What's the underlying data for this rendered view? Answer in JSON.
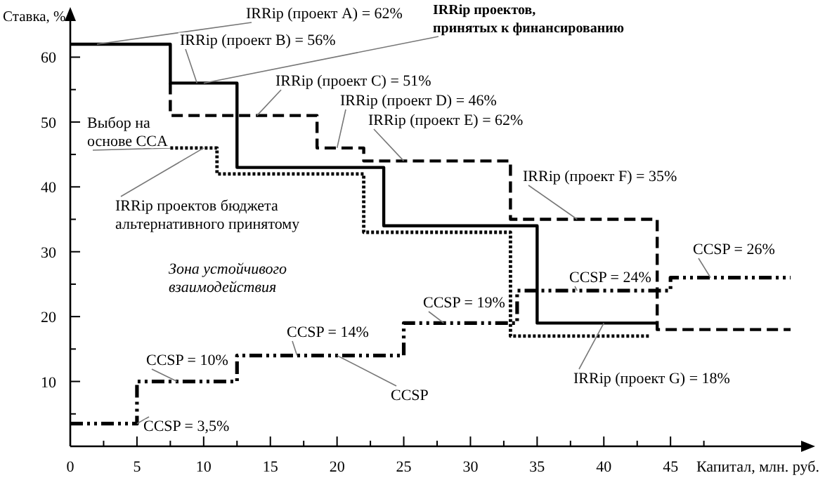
{
  "chart_data": {
    "type": "line",
    "xlabel": "Капитал, млн. руб.",
    "ylabel": "Ставка, %",
    "xlim": [
      0,
      55
    ],
    "ylim": [
      0,
      66
    ],
    "xticks": [
      0,
      {
        "value": 2.5,
        "label": null
      },
      5,
      {
        "value": 7.5,
        "label": null
      },
      10,
      {
        "value": 12.5,
        "label": null
      },
      15,
      {
        "value": 17.5,
        "label": null
      },
      20,
      {
        "value": 22.5,
        "label": null
      },
      25,
      {
        "value": 27.5,
        "label": null
      },
      30,
      {
        "value": 32.5,
        "label": null
      },
      35,
      {
        "value": 37.5,
        "label": null
      },
      40,
      {
        "value": 42.5,
        "label": null
      },
      45,
      {
        "value": 47.5,
        "label": null
      }
    ],
    "yticks": [
      {
        "value": 5,
        "label": null
      },
      10,
      {
        "value": 15,
        "label": null
      },
      20,
      {
        "value": 25,
        "label": null
      },
      30,
      {
        "value": 35,
        "label": null
      },
      40,
      {
        "value": 45,
        "label": null
      },
      50,
      {
        "value": 55,
        "label": null
      },
      60
    ],
    "marker": "none",
    "series": [
      {
        "color": "#000000",
        "line_style": "solid",
        "x": [
          0,
          7.5,
          7.5,
          12.5,
          12.5,
          23.5,
          23.5,
          35,
          35,
          44
        ],
        "values": [
          62,
          62,
          56,
          56,
          43,
          43,
          34,
          34,
          19,
          19
        ]
      },
      {
        "color": "#000000",
        "line_style": "dashed",
        "x": [
          7.5,
          7.5,
          18.5,
          18.5,
          22,
          22,
          33,
          33,
          44,
          44,
          54
        ],
        "values": [
          56,
          51,
          51,
          46,
          46,
          44,
          44,
          35,
          35,
          18,
          18
        ]
      },
      {
        "color": "#000000",
        "line_style": "dotted",
        "x": [
          7.5,
          11,
          11,
          22,
          22,
          33,
          33,
          43.5
        ],
        "values": [
          46,
          46,
          42,
          42,
          33,
          33,
          17,
          17
        ]
      },
      {
        "color": "#000000",
        "line_style": "dashdot",
        "x": [
          0,
          5,
          5,
          12.5,
          12.5,
          25,
          25,
          33.5,
          33.5,
          45,
          45,
          54
        ],
        "values": [
          3.5,
          3.5,
          10,
          10,
          14,
          14,
          19,
          19,
          24,
          24,
          26,
          26
        ]
      }
    ],
    "annotations": [
      {
        "text": "IRRip (проект A) = 62%",
        "x": 2,
        "y": 62
      },
      {
        "text": "IRRip (проект B) = 56%",
        "x": 9.5,
        "y": 56
      },
      {
        "text": "IRRip проектов,\nпринятых к финансированию",
        "x": 10,
        "y": 56
      },
      {
        "text": "IRRip (проект C) = 51%",
        "x": 14,
        "y": 51
      },
      {
        "text": "IRRip (проект D) = 46%",
        "x": 20,
        "y": 46
      },
      {
        "text": "IRRip (проект E) = 62%",
        "x": 25,
        "y": 44
      },
      {
        "text": "Выбор на\nоснове CCA",
        "x": 7.5,
        "y": 46
      },
      {
        "text": "IRRip проектов бюджета\nальтернативного принятому",
        "x": 10,
        "y": 46
      },
      "Зона устойчивого\nвзаимодействия",
      {
        "text": "CCSP = 14%",
        "x": 17,
        "y": 14
      },
      {
        "text": "CCSP = 10%",
        "x": 8,
        "y": 10
      },
      {
        "text": "CCSP = 3,5%",
        "x": 5,
        "y": 3.5
      },
      {
        "text": "CCSP",
        "x": 20,
        "y": 14
      },
      {
        "text": "CCSP = 19%",
        "x": 28,
        "y": 19
      },
      {
        "text": "CCSP = 24%",
        "x": 38,
        "y": 24
      },
      {
        "text": "CCSP = 26%",
        "x": 48,
        "y": 26
      },
      {
        "text": "IRRip (проект F) = 35%",
        "x": 38,
        "y": 35
      },
      {
        "text": "IRRip (проект G) = 18%",
        "x": 40,
        "y": 19
      }
    ]
  }
}
